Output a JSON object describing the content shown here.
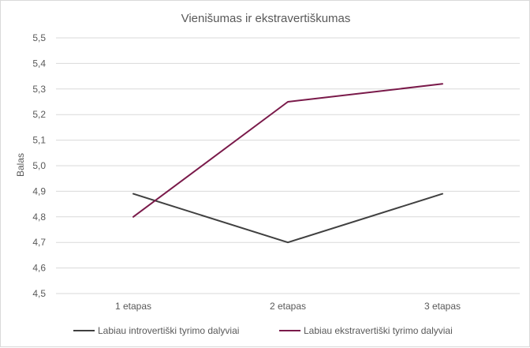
{
  "chart_data": {
    "type": "line",
    "title": "Vienišumas ir ekstravertiškumas",
    "xlabel": "",
    "ylabel": "Balas",
    "categories": [
      "1 etapas",
      "2 etapas",
      "3 etapas"
    ],
    "ylim": [
      4.5,
      5.5
    ],
    "yticks": [
      "4,5",
      "4,6",
      "4,7",
      "4,8",
      "4,9",
      "5,0",
      "5,1",
      "5,2",
      "5,3",
      "5,4",
      "5,5"
    ],
    "grid": true,
    "legend_position": "bottom",
    "series": [
      {
        "name": "Labiau introvertiški tyrimo dalyviai",
        "values": [
          4.89,
          4.7,
          4.89
        ],
        "color": "#404040"
      },
      {
        "name": "Labiau ekstravertiški tyrimo dalyviai",
        "values": [
          4.8,
          5.25,
          5.32
        ],
        "color": "#7a1a4a"
      }
    ]
  }
}
